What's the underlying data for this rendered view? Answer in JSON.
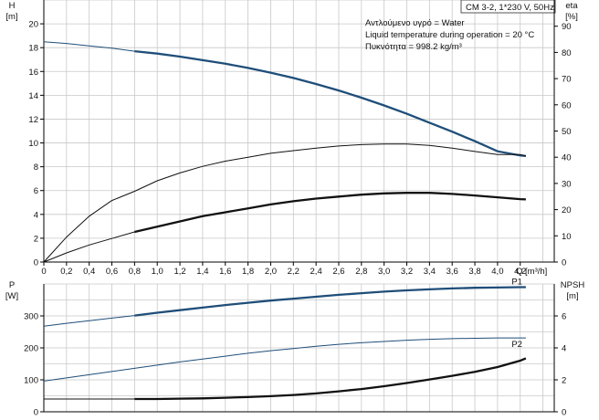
{
  "info_box": {
    "model": "CM 3-2, 1*230 V, 50Hz",
    "line1": "Αντλούμενο υγρό = Water",
    "line2": "Liquid temperature during operation = 20 °C",
    "line3": "Πυκνότητα = 998.2 kg/m³"
  },
  "colors": {
    "blue": "#1f4e79",
    "black": "#111111",
    "grid": "#c8c8c8"
  },
  "chart_data": [
    {
      "type": "line",
      "title": "",
      "xlabel": "Q [m³/h]",
      "ylabel_left": "H [m]",
      "ylabel_right": "eta [%]",
      "xlim": [
        0,
        4.5
      ],
      "ylim_left": [
        0,
        22
      ],
      "ylim_right": [
        0,
        100
      ],
      "x_ticks": [
        0,
        0.2,
        0.4,
        0.6,
        0.8,
        1.0,
        1.2,
        1.4,
        1.6,
        1.8,
        2.0,
        2.2,
        2.4,
        2.6,
        2.8,
        3.0,
        3.2,
        3.4,
        3.6,
        3.8,
        4.0,
        4.2
      ],
      "x_tick_labels": [
        "0",
        "0,2",
        "0,4",
        "0,6",
        "0,8",
        "1,0",
        "1,2",
        "1,4",
        "1,6",
        "1,8",
        "2,0",
        "2,2",
        "2,4",
        "2,6",
        "2,8",
        "3,0",
        "3,2",
        "3,4",
        "3,6",
        "3,8",
        "4,0",
        "4,2"
      ],
      "y_left_ticks": [
        0,
        2,
        4,
        6,
        8,
        10,
        12,
        14,
        16,
        18,
        20
      ],
      "y_right_ticks": [
        0,
        10,
        20,
        30,
        40,
        50,
        60,
        70,
        80,
        90
      ],
      "grid": true,
      "series": [
        {
          "axis": "left",
          "style": "blue-thick",
          "extrapolated_until": 0.78,
          "x": [
            0,
            0.2,
            0.4,
            0.6,
            0.8,
            1.0,
            1.2,
            1.4,
            1.6,
            1.8,
            2.0,
            2.2,
            2.4,
            2.6,
            2.8,
            3.0,
            3.2,
            3.4,
            3.6,
            3.8,
            4.0,
            4.2,
            4.25
          ],
          "y": [
            18.5,
            18.35,
            18.15,
            17.95,
            17.7,
            17.5,
            17.25,
            16.95,
            16.65,
            16.3,
            15.9,
            15.45,
            14.95,
            14.4,
            13.8,
            13.15,
            12.45,
            11.7,
            10.95,
            10.15,
            9.3,
            8.95,
            8.9
          ]
        },
        {
          "axis": "right",
          "style": "black-thin",
          "x": [
            0,
            0.2,
            0.4,
            0.6,
            0.8,
            1.0,
            1.2,
            1.4,
            1.6,
            1.8,
            2.0,
            2.2,
            2.4,
            2.6,
            2.8,
            3.0,
            3.2,
            3.4,
            3.6,
            3.8,
            4.0,
            4.2,
            4.25
          ],
          "y": [
            0,
            9.5,
            17.5,
            23.5,
            27,
            31,
            34,
            36.5,
            38.5,
            40,
            41.5,
            42.5,
            43.5,
            44.3,
            44.8,
            45,
            45,
            44.5,
            43.5,
            42.2,
            41,
            41,
            40.5
          ]
        },
        {
          "axis": "right",
          "style": "black-thick",
          "extrapolated_until": 0.78,
          "x": [
            0,
            0.2,
            0.4,
            0.6,
            0.8,
            1.0,
            1.2,
            1.4,
            1.6,
            1.8,
            2.0,
            2.2,
            2.4,
            2.6,
            2.8,
            3.0,
            3.2,
            3.4,
            3.6,
            3.8,
            4.0,
            4.2,
            4.25
          ],
          "y": [
            0,
            3.5,
            6.5,
            9,
            11.5,
            13.5,
            15.5,
            17.5,
            19,
            20.5,
            22,
            23.2,
            24.2,
            25,
            25.7,
            26.2,
            26.4,
            26.4,
            26,
            25.4,
            24.7,
            24,
            23.9
          ]
        }
      ]
    },
    {
      "type": "line",
      "title": "",
      "xlabel": "",
      "ylabel_left": "P [W]",
      "ylabel_right": "NPSH [m]",
      "xlim": [
        0,
        4.5
      ],
      "ylim_left": [
        0,
        400
      ],
      "ylim_right": [
        0,
        8
      ],
      "y_left_ticks": [
        0,
        100,
        200,
        300
      ],
      "y_right_ticks": [
        0,
        2,
        4,
        6
      ],
      "grid": true,
      "series": [
        {
          "name": "P1",
          "axis": "left",
          "style": "blue-thick",
          "extrapolated_until": 0.78,
          "x": [
            0,
            0.2,
            0.4,
            0.6,
            0.8,
            1.0,
            1.2,
            1.4,
            1.6,
            1.8,
            2.0,
            2.2,
            2.4,
            2.6,
            2.8,
            3.0,
            3.2,
            3.4,
            3.6,
            3.8,
            4.0,
            4.2,
            4.25
          ],
          "y": [
            268,
            277,
            285,
            293,
            301,
            310,
            318,
            326,
            334,
            341,
            348,
            354,
            360,
            366,
            371,
            376,
            380,
            383,
            386,
            388,
            389,
            390,
            390
          ]
        },
        {
          "name": "P2",
          "axis": "left",
          "style": "blue-thin",
          "x": [
            0,
            0.2,
            0.4,
            0.6,
            0.8,
            1.0,
            1.2,
            1.4,
            1.6,
            1.8,
            2.0,
            2.2,
            2.4,
            2.6,
            2.8,
            3.0,
            3.2,
            3.4,
            3.6,
            3.8,
            4.0,
            4.2,
            4.25
          ],
          "y": [
            96,
            106,
            116,
            126,
            136,
            146,
            156,
            165,
            174,
            183,
            191,
            198,
            205,
            211,
            216,
            220,
            224,
            227,
            229,
            230,
            231,
            231,
            231
          ]
        },
        {
          "axis": "right",
          "style": "black-thick",
          "extrapolated_until": 0.78,
          "x": [
            0,
            0.2,
            0.4,
            0.6,
            0.8,
            1.0,
            1.2,
            1.4,
            1.6,
            1.8,
            2.0,
            2.2,
            2.4,
            2.6,
            2.8,
            3.0,
            3.2,
            3.4,
            3.6,
            3.8,
            4.0,
            4.2,
            4.25
          ],
          "y": [
            0.8,
            0.8,
            0.8,
            0.8,
            0.8,
            0.8,
            0.82,
            0.84,
            0.88,
            0.92,
            0.98,
            1.05,
            1.15,
            1.28,
            1.42,
            1.6,
            1.8,
            2.02,
            2.25,
            2.5,
            2.8,
            3.2,
            3.35
          ]
        }
      ]
    }
  ]
}
